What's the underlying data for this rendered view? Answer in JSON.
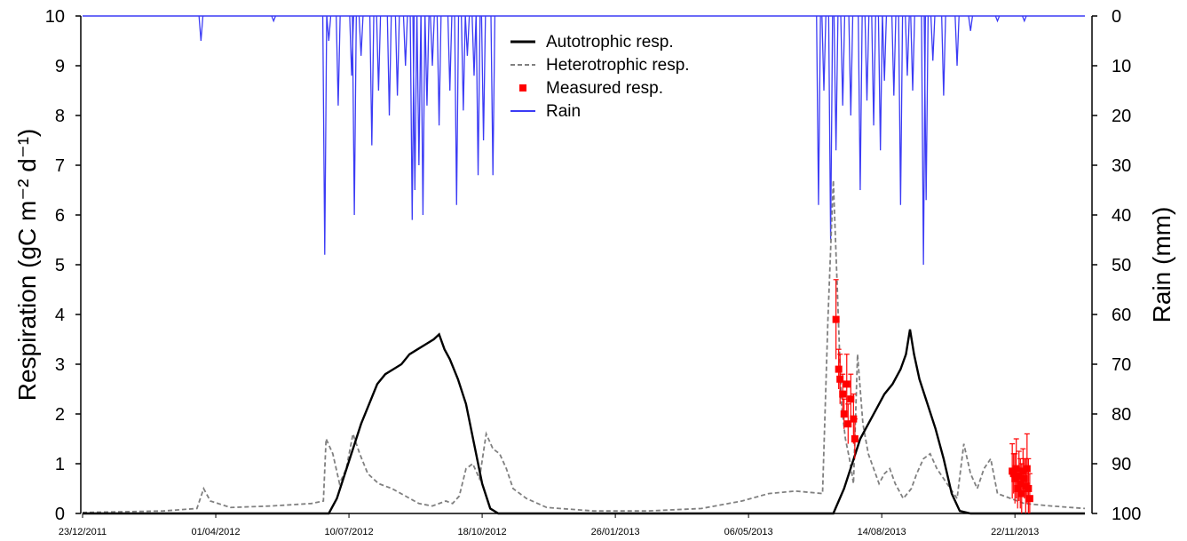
{
  "chart_data": {
    "type": "line",
    "y_left_label": "Respiration (gC m⁻² d⁻¹)",
    "y_right_label": "Rain (mm)",
    "y_left_lim": [
      0,
      10
    ],
    "y_right_lim": [
      0,
      100
    ],
    "y_right_inverted": true,
    "y_left_ticks": [
      "0",
      "1",
      "2",
      "3",
      "4",
      "5",
      "6",
      "7",
      "8",
      "9",
      "10"
    ],
    "y_right_ticks": [
      "0",
      "10",
      "20",
      "30",
      "40",
      "50",
      "60",
      "70",
      "80",
      "90",
      "100"
    ],
    "x_ticks": [
      "23/12/2011",
      "01/04/2012",
      "10/07/2012",
      "18/10/2012",
      "26/01/2013",
      "06/05/2013",
      "14/08/2013",
      "22/11/2013"
    ],
    "x_range_days": [
      0,
      745
    ],
    "legend_position": "top-center",
    "legend": [
      {
        "label": "Autotrophic resp.",
        "style": "solid",
        "color": "#000000"
      },
      {
        "label": "Heterotrophic resp.",
        "style": "dashed",
        "color": "#808080"
      },
      {
        "label": "Measured resp.",
        "style": "marker",
        "color": "#ff0000"
      },
      {
        "label": "Rain",
        "style": "solid",
        "color": "#3b3bf5"
      }
    ],
    "series": [
      {
        "name": "Autotrophic resp.",
        "color": "#000000",
        "points": [
          [
            0,
            0
          ],
          [
            183,
            0
          ],
          [
            189,
            0.3
          ],
          [
            195,
            0.8
          ],
          [
            201,
            1.3
          ],
          [
            207,
            1.8
          ],
          [
            213,
            2.2
          ],
          [
            219,
            2.6
          ],
          [
            225,
            2.8
          ],
          [
            231,
            2.9
          ],
          [
            237,
            3.0
          ],
          [
            243,
            3.2
          ],
          [
            249,
            3.3
          ],
          [
            255,
            3.4
          ],
          [
            261,
            3.5
          ],
          [
            265,
            3.6
          ],
          [
            269,
            3.3
          ],
          [
            273,
            3.1
          ],
          [
            279,
            2.7
          ],
          [
            285,
            2.2
          ],
          [
            291,
            1.4
          ],
          [
            297,
            0.6
          ],
          [
            303,
            0.1
          ],
          [
            309,
            0
          ],
          [
            558,
            0
          ],
          [
            566,
            0.5
          ],
          [
            572,
            1.0
          ],
          [
            578,
            1.5
          ],
          [
            584,
            1.8
          ],
          [
            590,
            2.1
          ],
          [
            596,
            2.4
          ],
          [
            602,
            2.6
          ],
          [
            608,
            2.9
          ],
          [
            612,
            3.2
          ],
          [
            615,
            3.7
          ],
          [
            618,
            3.2
          ],
          [
            622,
            2.7
          ],
          [
            628,
            2.2
          ],
          [
            634,
            1.7
          ],
          [
            640,
            1.1
          ],
          [
            646,
            0.4
          ],
          [
            652,
            0.05
          ],
          [
            660,
            0
          ],
          [
            745,
            0
          ]
        ]
      },
      {
        "name": "Heterotrophic resp.",
        "color": "#808080",
        "points": [
          [
            0,
            0.02
          ],
          [
            60,
            0.05
          ],
          [
            85,
            0.1
          ],
          [
            90,
            0.5
          ],
          [
            95,
            0.25
          ],
          [
            110,
            0.12
          ],
          [
            140,
            0.15
          ],
          [
            170,
            0.2
          ],
          [
            179,
            0.25
          ],
          [
            181,
            1.5
          ],
          [
            186,
            1.2
          ],
          [
            191,
            0.6
          ],
          [
            196,
            0.9
          ],
          [
            201,
            1.6
          ],
          [
            206,
            1.2
          ],
          [
            212,
            0.8
          ],
          [
            220,
            0.6
          ],
          [
            230,
            0.5
          ],
          [
            240,
            0.35
          ],
          [
            250,
            0.2
          ],
          [
            260,
            0.15
          ],
          [
            270,
            0.25
          ],
          [
            275,
            0.2
          ],
          [
            280,
            0.35
          ],
          [
            285,
            0.9
          ],
          [
            290,
            1.0
          ],
          [
            295,
            0.7
          ],
          [
            300,
            1.6
          ],
          [
            305,
            1.3
          ],
          [
            310,
            1.2
          ],
          [
            315,
            0.9
          ],
          [
            320,
            0.5
          ],
          [
            330,
            0.3
          ],
          [
            345,
            0.12
          ],
          [
            380,
            0.05
          ],
          [
            420,
            0.05
          ],
          [
            460,
            0.1
          ],
          [
            490,
            0.25
          ],
          [
            510,
            0.4
          ],
          [
            530,
            0.45
          ],
          [
            550,
            0.4
          ],
          [
            554,
            3.9
          ],
          [
            558,
            6.7
          ],
          [
            561,
            4.5
          ],
          [
            564,
            2.2
          ],
          [
            567,
            1.5
          ],
          [
            570,
            1.1
          ],
          [
            573,
            0.6
          ],
          [
            576,
            3.2
          ],
          [
            580,
            1.8
          ],
          [
            584,
            1.2
          ],
          [
            588,
            0.9
          ],
          [
            592,
            0.6
          ],
          [
            596,
            0.8
          ],
          [
            600,
            0.9
          ],
          [
            604,
            0.6
          ],
          [
            610,
            0.3
          ],
          [
            616,
            0.5
          ],
          [
            620,
            0.8
          ],
          [
            625,
            1.1
          ],
          [
            630,
            1.2
          ],
          [
            635,
            0.9
          ],
          [
            640,
            0.7
          ],
          [
            645,
            0.5
          ],
          [
            650,
            0.3
          ],
          [
            655,
            1.4
          ],
          [
            660,
            0.8
          ],
          [
            665,
            0.5
          ],
          [
            670,
            0.9
          ],
          [
            675,
            1.1
          ],
          [
            680,
            0.4
          ],
          [
            690,
            0.3
          ],
          [
            700,
            0.2
          ],
          [
            720,
            0.15
          ],
          [
            745,
            0.1
          ]
        ]
      },
      {
        "name": "Rain",
        "color": "#3b3bf5",
        "events": [
          [
            88,
            5
          ],
          [
            142,
            1
          ],
          [
            180,
            48
          ],
          [
            183,
            5
          ],
          [
            190,
            18
          ],
          [
            200,
            12
          ],
          [
            202,
            40
          ],
          [
            207,
            8
          ],
          [
            215,
            26
          ],
          [
            220,
            15
          ],
          [
            228,
            20
          ],
          [
            234,
            16
          ],
          [
            240,
            10
          ],
          [
            245,
            41
          ],
          [
            247,
            35
          ],
          [
            250,
            30
          ],
          [
            253,
            40
          ],
          [
            256,
            18
          ],
          [
            260,
            10
          ],
          [
            265,
            22
          ],
          [
            273,
            15
          ],
          [
            278,
            38
          ],
          [
            283,
            19
          ],
          [
            286,
            8
          ],
          [
            291,
            12
          ],
          [
            294,
            32
          ],
          [
            298,
            25
          ],
          [
            305,
            32
          ],
          [
            547,
            38
          ],
          [
            551,
            15
          ],
          [
            556,
            45
          ],
          [
            560,
            27
          ],
          [
            565,
            18
          ],
          [
            571,
            20
          ],
          [
            578,
            35
          ],
          [
            583,
            17
          ],
          [
            588,
            22
          ],
          [
            593,
            27
          ],
          [
            596,
            13
          ],
          [
            603,
            16
          ],
          [
            608,
            38
          ],
          [
            613,
            12
          ],
          [
            617,
            15
          ],
          [
            625,
            50
          ],
          [
            627,
            37
          ],
          [
            632,
            9
          ],
          [
            640,
            16
          ],
          [
            650,
            10
          ],
          [
            660,
            3
          ],
          [
            680,
            1
          ],
          [
            700,
            1
          ]
        ]
      },
      {
        "name": "Measured resp.",
        "color": "#ff0000",
        "points": [
          [
            560,
            3.9,
            0.8
          ],
          [
            562,
            2.9,
            0.4
          ],
          [
            563,
            2.7,
            0.5
          ],
          [
            565,
            2.4,
            0.4
          ],
          [
            566,
            2.0,
            0.3
          ],
          [
            568,
            2.6,
            0.6
          ],
          [
            569,
            1.8,
            0.4
          ],
          [
            571,
            2.3,
            0.5
          ],
          [
            573,
            1.9,
            0.5
          ],
          [
            574,
            1.5,
            0.4
          ],
          [
            691,
            0.85,
            0.55
          ],
          [
            692,
            0.8,
            0.4
          ],
          [
            693,
            0.7,
            0.5
          ],
          [
            694,
            0.9,
            0.6
          ],
          [
            695,
            0.5,
            0.4
          ],
          [
            696,
            0.75,
            0.5
          ],
          [
            697,
            0.6,
            0.5
          ],
          [
            698,
            0.4,
            0.6
          ],
          [
            699,
            0.85,
            0.45
          ],
          [
            700,
            0.7,
            0.4
          ],
          [
            701,
            0.55,
            0.55
          ],
          [
            702,
            0.9,
            0.7
          ],
          [
            703,
            0.5,
            0.6
          ],
          [
            704,
            0.3,
            0.5
          ]
        ]
      }
    ]
  }
}
